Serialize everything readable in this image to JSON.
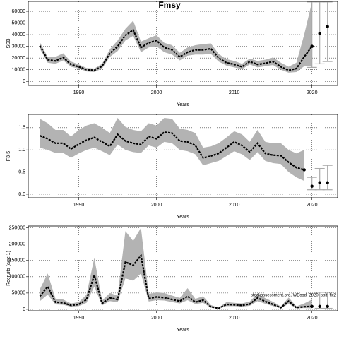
{
  "chart_data": [
    {
      "type": "line",
      "title": "Fmsy",
      "xlabel": "Years",
      "ylabel": "SSB",
      "x": [
        1985,
        1986,
        1987,
        1988,
        1989,
        1990,
        1991,
        1992,
        1993,
        1994,
        1995,
        1996,
        1997,
        1998,
        1999,
        2000,
        2001,
        2002,
        2003,
        2004,
        2005,
        2006,
        2007,
        2008,
        2009,
        2010,
        2011,
        2012,
        2013,
        2014,
        2015,
        2016,
        2017,
        2018,
        2019,
        2020
      ],
      "values": [
        30500,
        18500,
        17500,
        20500,
        14500,
        12500,
        10000,
        9500,
        13000,
        24000,
        30000,
        39500,
        44000,
        29000,
        33000,
        35000,
        29000,
        27000,
        21000,
        25000,
        27000,
        27000,
        28000,
        20000,
        16000,
        14500,
        12500,
        17000,
        14500,
        15500,
        17000,
        12500,
        9500,
        11000,
        21000,
        30000
      ],
      "lower": [
        28000,
        16000,
        15000,
        18000,
        12500,
        11000,
        8500,
        8000,
        11000,
        21000,
        26000,
        35000,
        39000,
        25000,
        29000,
        30000,
        25000,
        23000,
        18000,
        22000,
        23000,
        23000,
        23500,
        17000,
        13500,
        12000,
        10500,
        14500,
        12000,
        13000,
        14000,
        10000,
        7500,
        8000,
        13000,
        13000
      ],
      "upper": [
        33500,
        21000,
        21000,
        24000,
        17000,
        14500,
        11500,
        11000,
        15000,
        27500,
        35000,
        45000,
        52000,
        34000,
        37000,
        39500,
        33000,
        31000,
        24500,
        29000,
        31000,
        32000,
        32500,
        23500,
        19000,
        17500,
        15000,
        19500,
        17500,
        18500,
        20500,
        16000,
        12500,
        16000,
        40000,
        68000
      ],
      "forecast": {
        "x": [
          2020,
          2021,
          2022
        ],
        "values": [
          30000,
          41000,
          47000
        ],
        "lower": [
          12000,
          15000,
          17000
        ],
        "upper": [
          68000,
          68000,
          68000
        ]
      },
      "xlim": [
        1983.5,
        2023.3
      ],
      "ylim": [
        -3500,
        68500
      ],
      "xticks": [
        1990,
        2000,
        2010,
        2020
      ],
      "yticks": [
        0,
        10000,
        20000,
        30000,
        40000,
        50000,
        60000
      ],
      "grid": true,
      "color": "#000000",
      "band_color": "#b3b3b3",
      "forecast_color": "#aaaaaa"
    },
    {
      "type": "line",
      "xlabel": "Years",
      "ylabel": "F3-5",
      "x": [
        1985,
        1986,
        1987,
        1988,
        1989,
        1990,
        1991,
        1992,
        1993,
        1994,
        1995,
        1996,
        1997,
        1998,
        1999,
        2000,
        2001,
        2002,
        2003,
        2004,
        2005,
        2006,
        2007,
        2008,
        2009,
        2010,
        2011,
        2012,
        2013,
        2014,
        2015,
        2016,
        2017,
        2018,
        2019
      ],
      "values": [
        1.32,
        1.25,
        1.15,
        1.15,
        1.02,
        1.13,
        1.22,
        1.28,
        1.18,
        1.08,
        1.35,
        1.2,
        1.15,
        1.12,
        1.3,
        1.25,
        1.4,
        1.38,
        1.2,
        1.18,
        1.1,
        0.82,
        0.86,
        0.92,
        1.05,
        1.18,
        1.1,
        0.95,
        1.15,
        0.92,
        0.88,
        0.87,
        0.72,
        0.6,
        0.55
      ],
      "lower": [
        1.05,
        1.0,
        0.93,
        0.93,
        0.82,
        0.92,
        1.0,
        1.05,
        0.97,
        0.88,
        1.12,
        1.0,
        0.95,
        0.93,
        1.1,
        1.05,
        1.18,
        1.15,
        1.0,
        0.97,
        0.9,
        0.65,
        0.7,
        0.75,
        0.86,
        0.97,
        0.9,
        0.77,
        0.95,
        0.75,
        0.7,
        0.68,
        0.5,
        0.38,
        0.3
      ],
      "upper": [
        1.7,
        1.6,
        1.45,
        1.45,
        1.3,
        1.45,
        1.55,
        1.6,
        1.5,
        1.38,
        1.72,
        1.52,
        1.45,
        1.42,
        1.6,
        1.55,
        1.72,
        1.7,
        1.48,
        1.45,
        1.38,
        1.05,
        1.08,
        1.15,
        1.28,
        1.42,
        1.35,
        1.18,
        1.45,
        1.18,
        1.15,
        1.15,
        1.0,
        0.92,
        1.0
      ],
      "forecast": {
        "x": [
          2020,
          2021,
          2022
        ],
        "values": [
          0.18,
          0.26,
          0.26
        ],
        "lower": [
          0.1,
          0.1,
          0.1
        ],
        "upper": [
          0.38,
          0.58,
          0.65
        ]
      },
      "xlim": [
        1983.5,
        2023.3
      ],
      "ylim": [
        -0.08,
        1.8
      ],
      "xticks": [
        1990,
        2000,
        2010,
        2020
      ],
      "yticks": [
        {
          "value": 0,
          "label": "0.0"
        },
        {
          "value": 0.5,
          "label": "0.5"
        },
        {
          "value": 1,
          "label": "1.0"
        },
        {
          "value": 1.5,
          "label": "1.5"
        }
      ],
      "grid": true,
      "color": "#000000",
      "band_color": "#b3b3b3",
      "forecast_color": "#aaaaaa"
    },
    {
      "type": "line",
      "xlabel": "Years",
      "ylabel": "Recruits (age 1)",
      "annotation": "stockassessment.org, WBcod_2020_spit_fix2",
      "x": [
        1985,
        1986,
        1987,
        1988,
        1989,
        1990,
        1991,
        1992,
        1993,
        1994,
        1995,
        1996,
        1997,
        1998,
        1999,
        2000,
        2001,
        2002,
        2003,
        2004,
        2005,
        2006,
        2007,
        2008,
        2009,
        2010,
        2011,
        2012,
        2013,
        2014,
        2015,
        2016,
        2017,
        2018,
        2019,
        2020
      ],
      "values": [
        40000,
        70000,
        22000,
        20000,
        12000,
        15000,
        30000,
        105000,
        18000,
        35000,
        30000,
        145000,
        135000,
        165000,
        33000,
        38000,
        36000,
        30000,
        25000,
        40000,
        22000,
        28000,
        8000,
        3000,
        15000,
        14000,
        12000,
        16000,
        35000,
        24000,
        15000,
        5000,
        25000,
        5000,
        8000,
        9000
      ],
      "lower": [
        25000,
        45000,
        15000,
        14000,
        8000,
        10000,
        20000,
        70000,
        12000,
        25000,
        22000,
        95000,
        88000,
        110000,
        24000,
        28000,
        27000,
        22000,
        18000,
        28000,
        16000,
        20000,
        5000,
        2000,
        10000,
        10000,
        8000,
        11000,
        25000,
        17000,
        10000,
        3000,
        17000,
        3000,
        4000,
        3000
      ],
      "upper": [
        62000,
        110000,
        33000,
        30000,
        18000,
        22000,
        45000,
        158000,
        27000,
        50000,
        42000,
        240000,
        210000,
        250000,
        47000,
        52000,
        50000,
        42000,
        35000,
        65000,
        32000,
        40000,
        13000,
        5000,
        22000,
        20000,
        18000,
        24000,
        48000,
        34000,
        23000,
        9000,
        36000,
        9000,
        18000,
        30000
      ],
      "forecast": {
        "x": [
          2021,
          2022
        ],
        "values": [
          9000,
          9000
        ],
        "lower": [
          3000,
          3000
        ],
        "upper": [
          52000,
          52000
        ]
      },
      "xlim": [
        1983.5,
        2023.3
      ],
      "ylim": [
        -4500,
        255700
      ],
      "xticks": [
        1990,
        2000,
        2010,
        2020
      ],
      "yticks": [
        0,
        50000,
        100000,
        150000,
        200000,
        250000
      ],
      "grid": true,
      "color": "#000000",
      "band_color": "#b3b3b3",
      "forecast_color": "#aaaaaa"
    }
  ]
}
